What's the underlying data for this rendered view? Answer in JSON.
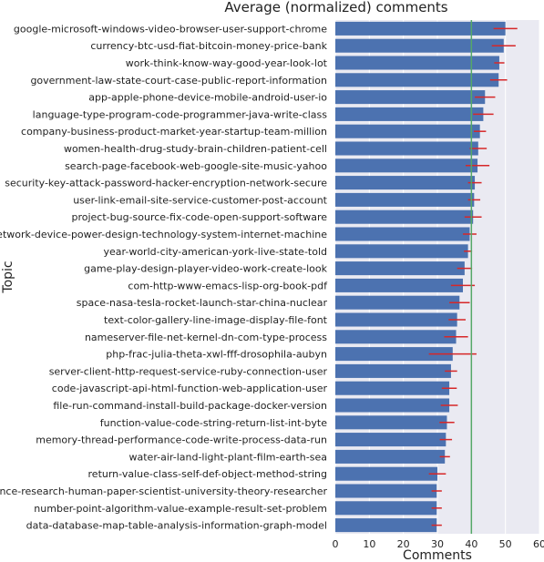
{
  "chart_data": {
    "type": "bar",
    "orientation": "horizontal",
    "title": "Average (normalized) comments",
    "xlabel": "Comments",
    "ylabel": "Topic",
    "xlim": [
      0,
      60
    ],
    "xticks": [
      0,
      10,
      20,
      30,
      40,
      50,
      60
    ],
    "grid": true,
    "reference_line": 40,
    "colors": {
      "bar": "#4c72b0",
      "error": "#d62728",
      "reference": "#55a868",
      "background": "#eaeaf2",
      "grid": "#ffffff"
    },
    "categories": [
      "google-microsoft-windows-video-browser-user-support-chrome",
      "currency-btc-usd-fiat-bitcoin-money-price-bank",
      "work-think-know-way-good-year-look-lot",
      "government-law-state-court-case-public-report-information",
      "app-apple-phone-device-mobile-android-user-io",
      "language-type-program-code-programmer-java-write-class",
      "company-business-product-market-year-startup-team-million",
      "women-health-drug-study-brain-children-patient-cell",
      "search-page-facebook-web-google-site-music-yahoo",
      "security-key-attack-password-hacker-encryption-network-secure",
      "user-link-email-site-service-customer-post-account",
      "project-bug-source-fix-code-open-support-software",
      "network-device-power-design-technology-system-internet-machine",
      "year-world-city-american-york-live-state-told",
      "game-play-design-player-video-work-create-look",
      "com-http-www-emacs-lisp-org-book-pdf",
      "space-nasa-tesla-rocket-launch-star-china-nuclear",
      "text-color-gallery-line-image-display-file-font",
      "nameserver-file-net-kernel-dn-com-type-process",
      "php-frac-julia-theta-xwl-fff-drosophila-aubyn",
      "server-client-http-request-service-ruby-connection-user",
      "code-javascript-api-html-function-web-application-user",
      "file-run-command-install-build-package-docker-version",
      "function-value-code-string-return-list-int-byte",
      "memory-thread-performance-code-write-process-data-run",
      "water-air-land-light-plant-film-earth-sea",
      "return-value-class-self-def-object-method-string",
      "science-research-human-paper-scientist-university-theory-researcher",
      "number-point-algorithm-value-example-result-set-problem",
      "data-database-map-table-analysis-information-graph-model"
    ],
    "values": [
      50.0,
      49.5,
      48.2,
      48.0,
      44.0,
      43.5,
      42.5,
      42.0,
      41.8,
      41.0,
      40.8,
      40.5,
      39.5,
      39.0,
      38.0,
      37.5,
      36.5,
      35.8,
      35.5,
      34.5,
      34.0,
      33.5,
      33.5,
      32.8,
      32.5,
      32.2,
      30.0,
      29.8,
      29.8,
      29.8
    ],
    "errors": [
      3.5,
      3.5,
      1.5,
      2.5,
      3.0,
      3.0,
      1.8,
      2.5,
      3.5,
      2.0,
      1.8,
      2.5,
      2.0,
      1.2,
      2.2,
      3.5,
      3.0,
      2.5,
      3.5,
      7.0,
      1.8,
      2.2,
      2.5,
      2.2,
      1.8,
      1.5,
      2.5,
      1.5,
      1.5,
      1.5
    ]
  }
}
